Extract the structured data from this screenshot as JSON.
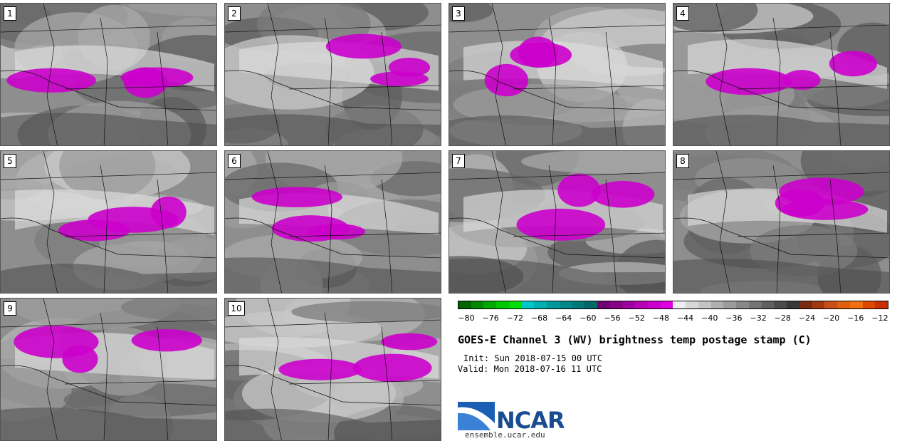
{
  "panels": [
    {
      "label": "1"
    },
    {
      "label": "2"
    },
    {
      "label": "3"
    },
    {
      "label": "4"
    },
    {
      "label": "5"
    },
    {
      "label": "6"
    },
    {
      "label": "7"
    },
    {
      "label": "8"
    },
    {
      "label": "9"
    },
    {
      "label": "10"
    }
  ],
  "colorbar": {
    "ticks": [
      "−80",
      "−76",
      "−72",
      "−68",
      "−64",
      "−60",
      "−56",
      "−52",
      "−48",
      "−44",
      "−40",
      "−36",
      "−32",
      "−28",
      "−24",
      "−20",
      "−16",
      "−12"
    ],
    "colors": [
      "#006400",
      "#008800",
      "#00a800",
      "#00c800",
      "#00e000",
      "#00c8c8",
      "#00b0b0",
      "#009898",
      "#008888",
      "#007878",
      "#006868",
      "#700070",
      "#880088",
      "#a000a0",
      "#b800b8",
      "#cc00cc",
      "#e000e0",
      "#eeeeee",
      "#d8d8d8",
      "#c4c4c4",
      "#b0b0b0",
      "#9c9c9c",
      "#888888",
      "#747474",
      "#606060",
      "#4c4c4c",
      "#383838",
      "#7a2a10",
      "#a03810",
      "#c85018",
      "#e06010",
      "#f07010",
      "#e04800",
      "#c83000"
    ]
  },
  "title": "GOES-E Channel 3 (WV) brightness temp postage stamp (C)",
  "init": "Init: Sun 2018-07-15 00 UTC",
  "valid": "Valid: Mon 2018-07-16 11 UTC",
  "logo": {
    "text": "NCAR",
    "url": "ensemble.ucar.edu"
  }
}
